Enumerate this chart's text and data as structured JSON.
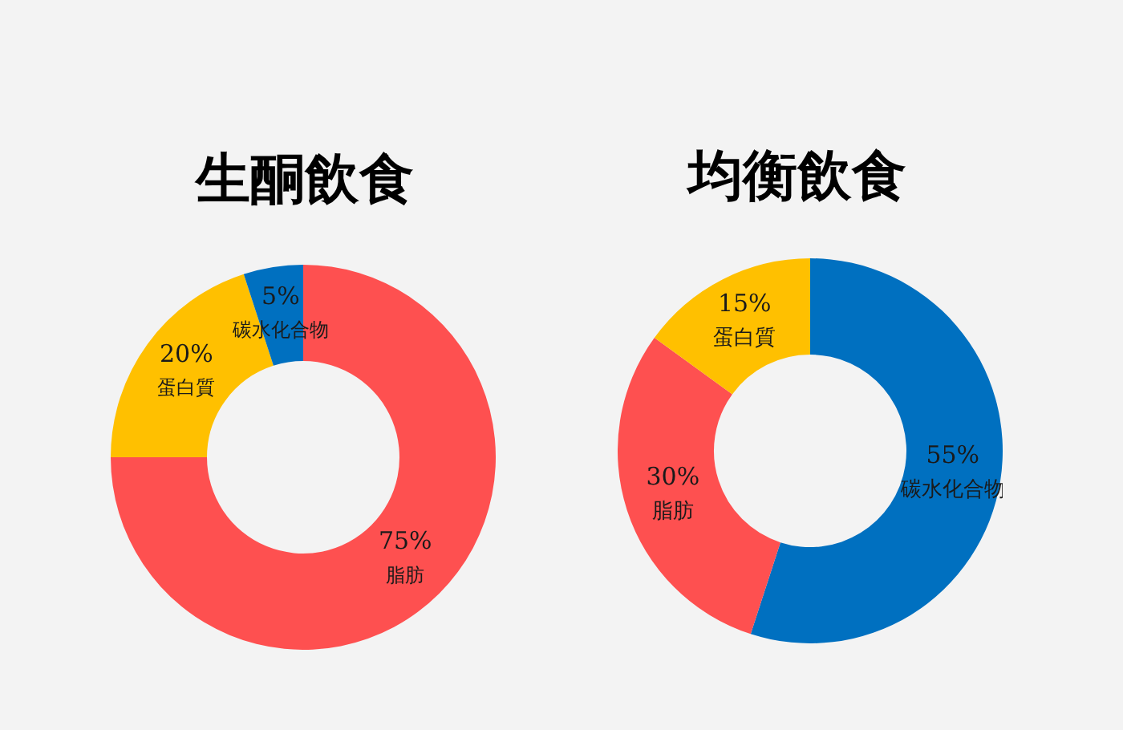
{
  "chart_data": [
    {
      "type": "donut",
      "title": "生酮飲食",
      "categories": [
        "脂肪",
        "蛋白質",
        "碳水化合物"
      ],
      "values": [
        75,
        20,
        5
      ],
      "colors": [
        "#fe5050",
        "#ffc000",
        "#0070c0"
      ],
      "value_labels": [
        "75%",
        "20%",
        "5%"
      ]
    },
    {
      "type": "donut",
      "title": "均衡飲食",
      "categories": [
        "碳水化合物",
        "脂肪",
        "蛋白質"
      ],
      "values": [
        55,
        30,
        15
      ],
      "colors": [
        "#0070c0",
        "#fe5050",
        "#ffc000"
      ],
      "value_labels": [
        "55%",
        "30%",
        "15%"
      ]
    }
  ]
}
